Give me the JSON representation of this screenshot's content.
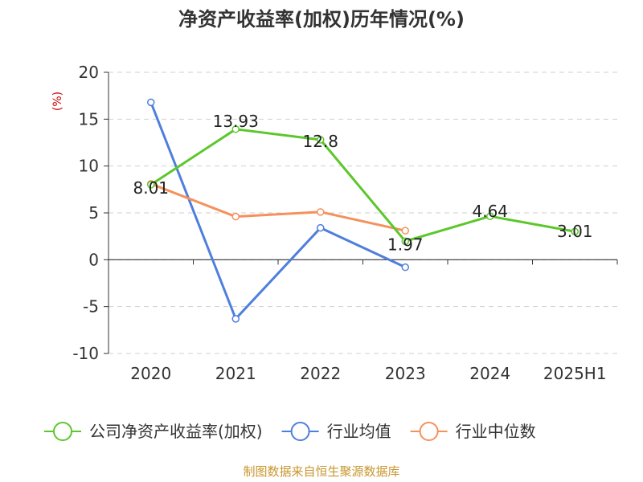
{
  "chart_data": {
    "type": "line",
    "title": "净资产收益率(加权)历年情况(%)",
    "ylabel": "(%)",
    "categories": [
      "2020",
      "2021",
      "2022",
      "2023",
      "2024",
      "2025H1"
    ],
    "ylim": [
      -10,
      20
    ],
    "yticks": [
      20,
      15,
      10,
      5,
      0,
      -5,
      -10
    ],
    "grid": true,
    "legend_position": "bottom",
    "series": [
      {
        "name": "公司净资产收益率(加权)",
        "color": "#5cc72b",
        "values": [
          8.01,
          13.93,
          12.8,
          1.97,
          4.64,
          3.01
        ],
        "labels": [
          "8.01",
          "13.93",
          "12.8",
          "1.97",
          "4.64",
          "3.01"
        ]
      },
      {
        "name": "行业均值",
        "color": "#4f7fdc",
        "values": [
          16.8,
          -6.3,
          3.4,
          -0.8,
          null,
          null
        ]
      },
      {
        "name": "行业中位数",
        "color": "#f5915c",
        "values": [
          8.1,
          4.6,
          5.1,
          3.1,
          null,
          null
        ]
      }
    ]
  },
  "source": "制图数据来自恒生聚源数据库"
}
